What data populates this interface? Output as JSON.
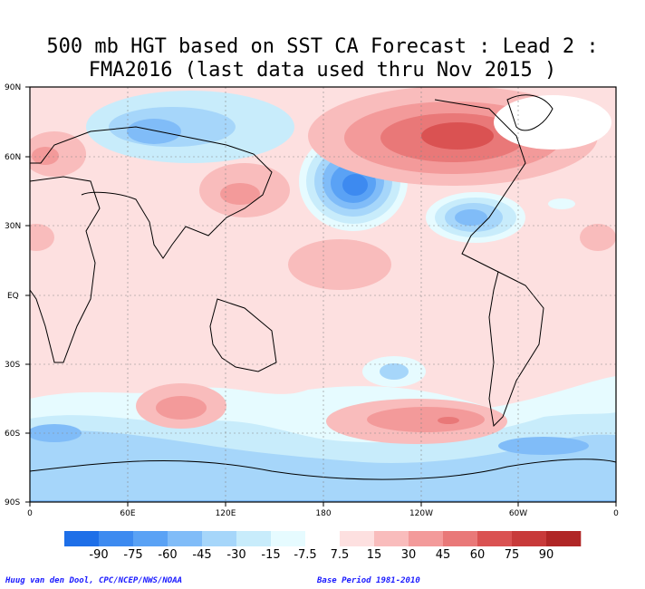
{
  "title_line1": "500 mb HGT based on SST CA Forecast : Lead 2 :",
  "title_line2": "FMA2016 (last data used thru Nov 2015 )",
  "lat_labels": [
    "90N",
    "60N",
    "30N",
    "EQ",
    "30S",
    "60S",
    "90S"
  ],
  "lon_labels": [
    "0",
    "60E",
    "120E",
    "180",
    "120W",
    "60W",
    "0"
  ],
  "colorbar": {
    "labels": [
      "-90",
      "-75",
      "-60",
      "-45",
      "-30",
      "-15",
      "-7.5",
      "7.5",
      "15",
      "30",
      "45",
      "60",
      "75",
      "90"
    ],
    "colors": [
      "#1e6fe8",
      "#3d8af0",
      "#5aa2f5",
      "#80bcf8",
      "#a6d6fa",
      "#c8ecfb",
      "#e6fbff",
      "#ffffff",
      "#fde0e0",
      "#f9bcbc",
      "#f39a9a",
      "#e97878",
      "#da5252",
      "#c83a3a",
      "#b02626"
    ]
  },
  "credit": "Huug van den Dool, CPC/NCEP/NWS/NOAA",
  "base_period": "Base Period 1981-2010"
}
